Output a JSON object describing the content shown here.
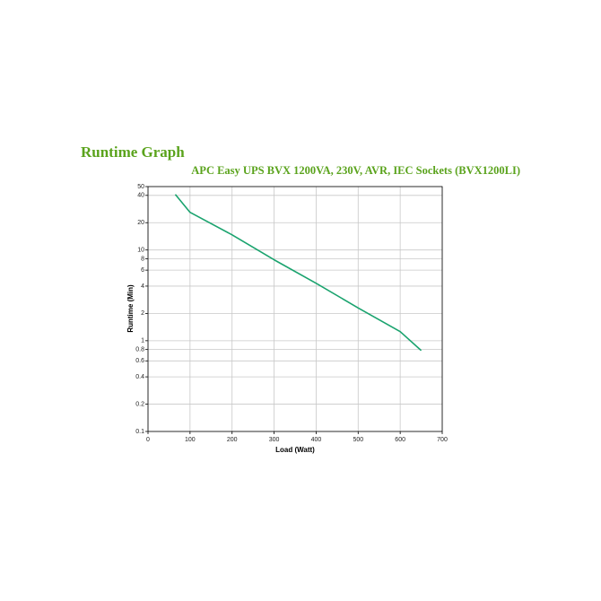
{
  "chart_data": {
    "type": "line",
    "title": "Runtime Graph",
    "subtitle": "APC Easy UPS BVX 1200VA, 230V, AVR, IEC Sockets (BVX1200LI)",
    "x_label": "Load (Watt)",
    "y_label": "Runtime (Min)",
    "x": [
      65,
      100,
      200,
      300,
      400,
      500,
      600,
      650
    ],
    "values": [
      41,
      26,
      14.7,
      7.8,
      4.3,
      2.3,
      1.26,
      0.78
    ],
    "color": "#1aa36e",
    "xlim": [
      0,
      700
    ],
    "xticks": [
      0,
      100,
      200,
      300,
      400,
      500,
      600,
      700
    ],
    "ylim": [
      0.1,
      50
    ],
    "yticks": [
      0.1,
      0.2,
      0.4,
      0.6,
      0.8,
      1,
      2,
      4,
      6,
      8,
      10,
      20,
      40,
      50
    ],
    "y_scale": "log",
    "grid": true
  }
}
